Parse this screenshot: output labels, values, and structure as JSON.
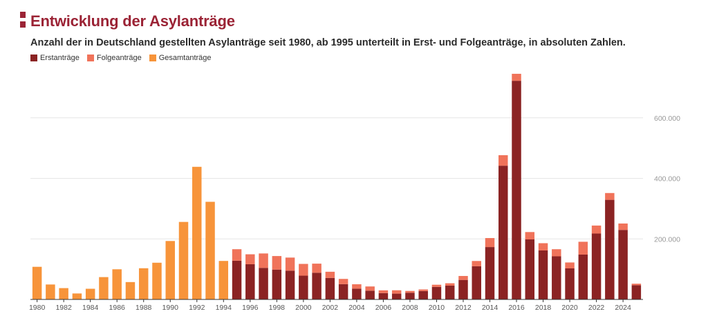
{
  "header": {
    "title": "Entwicklung der Asylanträge",
    "subtitle": "Anzahl der in Deutschland gestellten Asylanträge seit 1980, ab 1995 unterteilt in Erst- und Folgeanträge, in absoluten Zahlen."
  },
  "colors": {
    "brand": "#9b2335",
    "erstantraege": "#8b2323",
    "folgeantraege": "#f0735a",
    "gesamtantraege": "#f7943a",
    "grid": "#e6e6e6",
    "axis": "#333333",
    "tick_text": "#999999"
  },
  "legend": [
    {
      "label": "Erstanträge",
      "color": "#8b2323"
    },
    {
      "label": "Folgeanträge",
      "color": "#f0735a"
    },
    {
      "label": "Gesamtanträge",
      "color": "#f7943a"
    }
  ],
  "chart_data": {
    "type": "bar",
    "stacked": true,
    "title": "Entwicklung der Asylanträge",
    "xlabel": "",
    "ylabel": "",
    "ylim": [
      0,
      750000
    ],
    "grid": true,
    "legend_position": "top-left",
    "y_axis_side": "right",
    "y_ticks": [
      200000,
      400000,
      600000
    ],
    "y_tick_labels": [
      "200.000",
      "400.000",
      "600.000"
    ],
    "x_tick_labels": [
      "1980",
      "1982",
      "1984",
      "1986",
      "1988",
      "1990",
      "1992",
      "1994",
      "1996",
      "1998",
      "2000",
      "2002",
      "2004",
      "2006",
      "2008",
      "2010",
      "2012",
      "2014",
      "2016",
      "2018",
      "2020",
      "2022",
      "2024"
    ],
    "categories": [
      "1980",
      "1981",
      "1982",
      "1983",
      "1984",
      "1985",
      "1986",
      "1987",
      "1988",
      "1989",
      "1990",
      "1991",
      "1992",
      "1993",
      "1994",
      "1995",
      "1996",
      "1997",
      "1998",
      "1999",
      "2000",
      "2001",
      "2002",
      "2003",
      "2004",
      "2005",
      "2006",
      "2007",
      "2008",
      "2009",
      "2010",
      "2011",
      "2012",
      "2013",
      "2014",
      "2015",
      "2016",
      "2017",
      "2018",
      "2019",
      "2020",
      "2021",
      "2022",
      "2023",
      "2024",
      "2025"
    ],
    "series": [
      {
        "name": "Gesamtanträge",
        "values": [
          107818,
          49391,
          37423,
          19737,
          35278,
          73832,
          99650,
          57379,
          103076,
          121318,
          193063,
          256112,
          438191,
          322599,
          127210,
          null,
          null,
          null,
          null,
          null,
          null,
          null,
          null,
          null,
          null,
          null,
          null,
          null,
          null,
          null,
          null,
          null,
          null,
          null,
          null,
          null,
          null,
          null,
          null,
          null,
          null,
          null,
          null,
          null,
          null,
          null
        ]
      },
      {
        "name": "Erstanträge",
        "values": [
          null,
          null,
          null,
          null,
          null,
          null,
          null,
          null,
          null,
          null,
          null,
          null,
          null,
          null,
          null,
          127937,
          116367,
          104353,
          98644,
          95113,
          78564,
          88287,
          71127,
          50563,
          35607,
          28914,
          21029,
          19164,
          22085,
          27649,
          41332,
          45741,
          64539,
          109580,
          173072,
          441899,
          722370,
          198317,
          161931,
          142509,
          102581,
          148233,
          217774,
          329120,
          229751,
          47000
        ]
      },
      {
        "name": "Folgeanträge",
        "values": [
          null,
          null,
          null,
          null,
          null,
          null,
          null,
          null,
          null,
          null,
          null,
          null,
          null,
          null,
          null,
          38014,
          32840,
          47574,
          44764,
          43206,
          38854,
          30019,
          20359,
          17286,
          14545,
          13994,
          9069,
          11139,
          6009,
          5384,
          7257,
          7706,
          13023,
          17443,
          29762,
          34750,
          23175,
          24370,
          23922,
          23429,
          19581,
          42340,
          26389,
          22477,
          21165,
          5000
        ]
      }
    ]
  }
}
